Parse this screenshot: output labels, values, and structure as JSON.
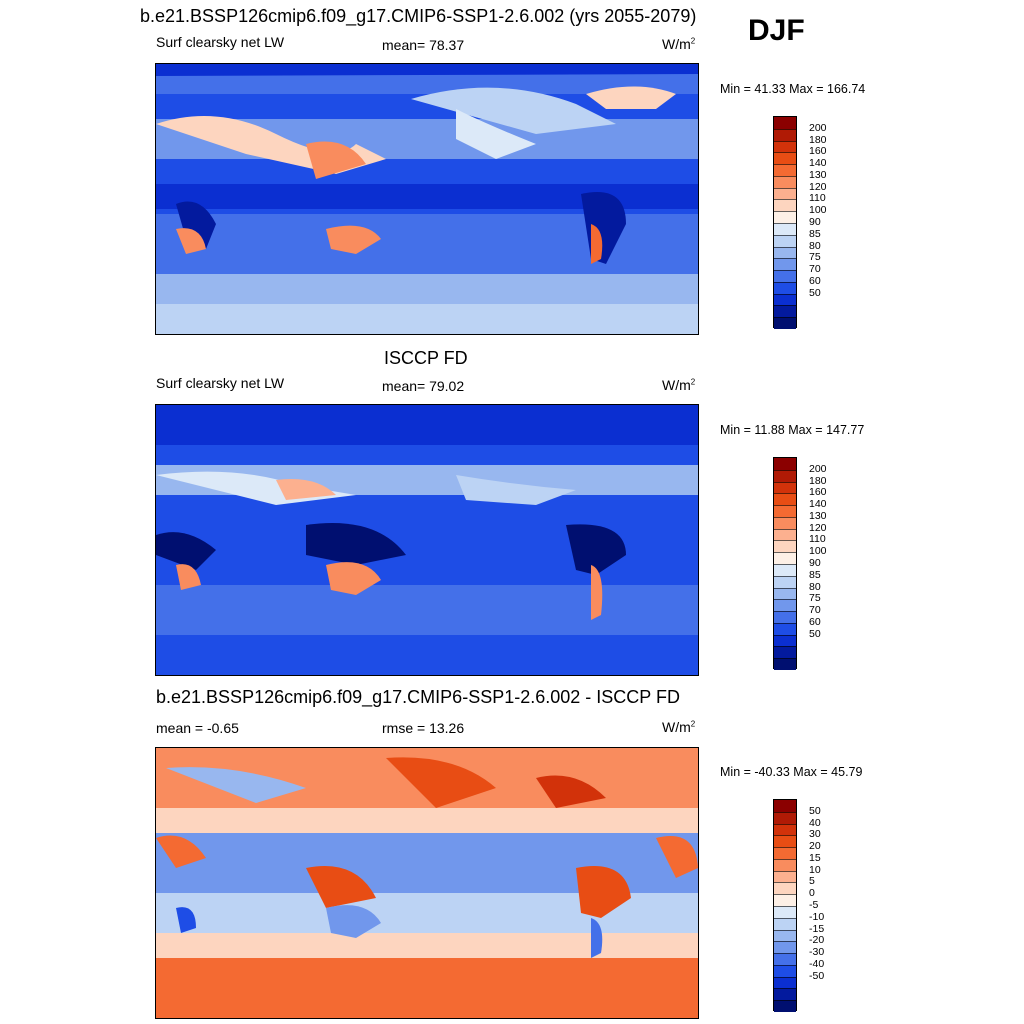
{
  "season": "DJF",
  "panels": [
    {
      "title": "b.e21.BSSP126cmip6.f09_g17.CMIP6-SSP1-2.6.002 (yrs 2055-2079)",
      "left_label": "Surf clearsky net LW",
      "center_label": "mean=  78.37",
      "units": "W/m",
      "units_sup": "2",
      "minmax": "Min =  41.33 Max = 166.74",
      "colorbar": {
        "labels": [
          "200",
          "180",
          "160",
          "140",
          "130",
          "120",
          "110",
          "100",
          "90",
          "85",
          "80",
          "75",
          "70",
          "60",
          "50"
        ],
        "colors": [
          "#8b0000",
          "#b01a05",
          "#d2320a",
          "#e84d14",
          "#f46a32",
          "#f98c5e",
          "#fcb08f",
          "#fdd5bf",
          "#fdf0e6",
          "#dce9f8",
          "#bcd3f4",
          "#98b7ef",
          "#7197ec",
          "#4470e9",
          "#1e4de6",
          "#0b2fd1",
          "#031a9e",
          "#000f70"
        ]
      }
    },
    {
      "title": "ISCCP FD",
      "left_label": "Surf clearsky net LW",
      "center_label": "mean=  79.02",
      "units": "W/m",
      "units_sup": "2",
      "minmax": "Min =  11.88 Max = 147.77",
      "colorbar": {
        "labels": [
          "200",
          "180",
          "160",
          "140",
          "130",
          "120",
          "110",
          "100",
          "90",
          "85",
          "80",
          "75",
          "70",
          "60",
          "50"
        ],
        "colors": [
          "#8b0000",
          "#b01a05",
          "#d2320a",
          "#e84d14",
          "#f46a32",
          "#f98c5e",
          "#fcb08f",
          "#fdd5bf",
          "#fdf0e6",
          "#dce9f8",
          "#bcd3f4",
          "#98b7ef",
          "#7197ec",
          "#4470e9",
          "#1e4de6",
          "#0b2fd1",
          "#031a9e",
          "#000f70"
        ]
      }
    },
    {
      "title": "b.e21.BSSP126cmip6.f09_g17.CMIP6-SSP1-2.6.002 - ISCCP FD",
      "left_label": "mean =  -0.65",
      "center_label": "rmse =  13.26",
      "units": "W/m",
      "units_sup": "2",
      "minmax": "Min = -40.33 Max =  45.79",
      "colorbar": {
        "labels": [
          "50",
          "40",
          "30",
          "20",
          "15",
          "10",
          "5",
          "0",
          "-5",
          "-10",
          "-15",
          "-20",
          "-30",
          "-40",
          "-50"
        ],
        "colors": [
          "#8b0000",
          "#b01a05",
          "#d2320a",
          "#e84d14",
          "#f46a32",
          "#f98c5e",
          "#fcb08f",
          "#fdd5bf",
          "#fdf0e6",
          "#dce9f8",
          "#bcd3f4",
          "#98b7ef",
          "#7197ec",
          "#4470e9",
          "#1e4de6",
          "#0b2fd1",
          "#031a9e",
          "#000f70"
        ]
      }
    }
  ]
}
